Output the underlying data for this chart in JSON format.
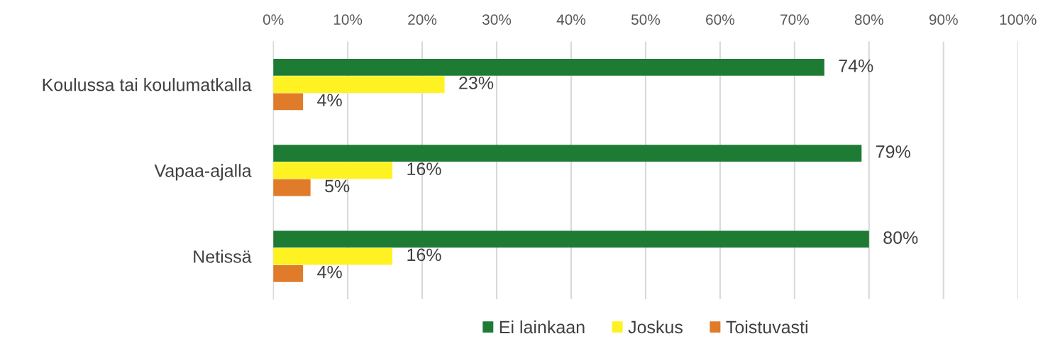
{
  "chart_data": {
    "type": "bar",
    "orientation": "horizontal",
    "categories": [
      "Koulussa tai koulumatkalla",
      "Vapaa-ajalla",
      "Netissä"
    ],
    "series": [
      {
        "name": "Ei lainkaan",
        "color": "#1e7b34",
        "values": [
          74,
          79,
          80
        ],
        "value_labels": [
          "74%",
          "79%",
          "80%"
        ]
      },
      {
        "name": "Joskus",
        "color": "#fff223",
        "values": [
          23,
          16,
          16
        ],
        "value_labels": [
          "23%",
          "16%",
          "16%"
        ]
      },
      {
        "name": "Toistuvasti",
        "color": "#e07b2a",
        "values": [
          4,
          5,
          4
        ],
        "value_labels": [
          "4%",
          "5%",
          "4%"
        ]
      }
    ],
    "xlim": [
      0,
      100
    ],
    "xticks": [
      {
        "value": 0,
        "label": "0%"
      },
      {
        "value": 10,
        "label": "10%"
      },
      {
        "value": 20,
        "label": "20%"
      },
      {
        "value": 30,
        "label": "30%"
      },
      {
        "value": 40,
        "label": "40%"
      },
      {
        "value": 50,
        "label": "50%"
      },
      {
        "value": 60,
        "label": "60%"
      },
      {
        "value": 70,
        "label": "70%"
      },
      {
        "value": 80,
        "label": "80%"
      },
      {
        "value": 90,
        "label": "90%"
      },
      {
        "value": 100,
        "label": "100%"
      }
    ],
    "grid": "x",
    "legend": "bottom"
  }
}
